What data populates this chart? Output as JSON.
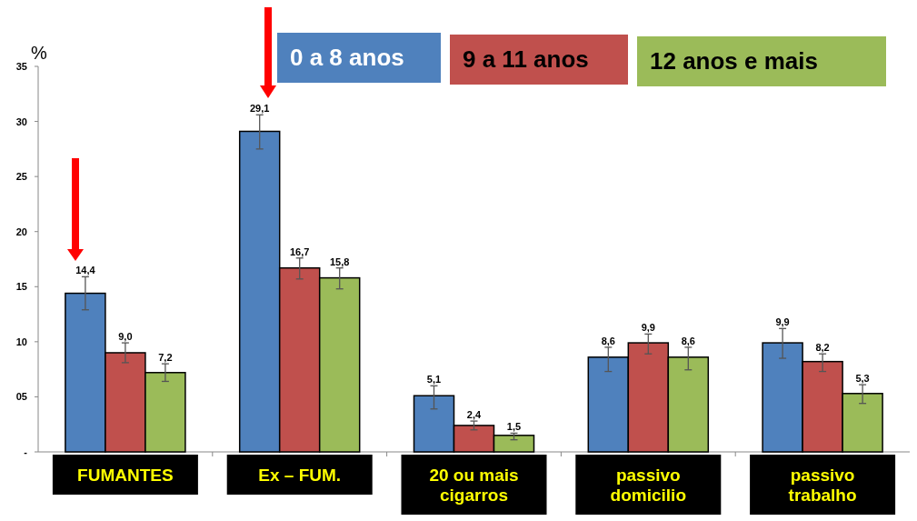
{
  "chart_data": {
    "type": "bar",
    "ylabel": "%",
    "categories": [
      "FUMANTES",
      "Ex – FUM.",
      "20 ou mais cigarros",
      "passivo domicilio",
      "passivo trabalho"
    ],
    "series": [
      {
        "name": "0 a 8 anos",
        "color": "#4f81bd",
        "values": [
          14.4,
          29.1,
          5.1,
          8.6,
          9.9
        ],
        "value_labels": [
          "14,4",
          "29,1",
          "5,1",
          "8,6",
          "9,9"
        ],
        "errors": [
          [
            12.9,
            15.9
          ],
          [
            27.5,
            30.6
          ],
          [
            3.9,
            6.0
          ],
          [
            7.3,
            9.5
          ],
          [
            8.5,
            11.2
          ]
        ]
      },
      {
        "name": "9 a 11 anos",
        "color": "#c0504d",
        "values": [
          9.0,
          16.7,
          2.4,
          9.9,
          8.2
        ],
        "value_labels": [
          "9,0",
          "16,7",
          "2,4",
          "9,9",
          "8,2"
        ],
        "errors": [
          [
            8.1,
            9.9
          ],
          [
            15.7,
            17.6
          ],
          [
            2.0,
            2.8
          ],
          [
            8.9,
            10.7
          ],
          [
            7.3,
            8.9
          ]
        ]
      },
      {
        "name": "12 anos e mais",
        "color": "#9bbb59",
        "values": [
          7.2,
          15.8,
          1.5,
          8.6,
          5.3
        ],
        "value_labels": [
          "7,2",
          "15,8",
          "1,5",
          "8,6",
          "5,3"
        ],
        "errors": [
          [
            6.4,
            8.0
          ],
          [
            14.8,
            16.7
          ],
          [
            1.1,
            1.7
          ],
          [
            7.45,
            9.5
          ],
          [
            4.4,
            6.1
          ]
        ]
      }
    ],
    "ylim": [
      0,
      35
    ],
    "yticks": [
      {
        "value": 0,
        "label": "-"
      },
      {
        "value": 5,
        "label": "05"
      },
      10,
      15,
      20,
      25,
      30,
      35
    ],
    "grid": false,
    "legend": "top right"
  }
}
